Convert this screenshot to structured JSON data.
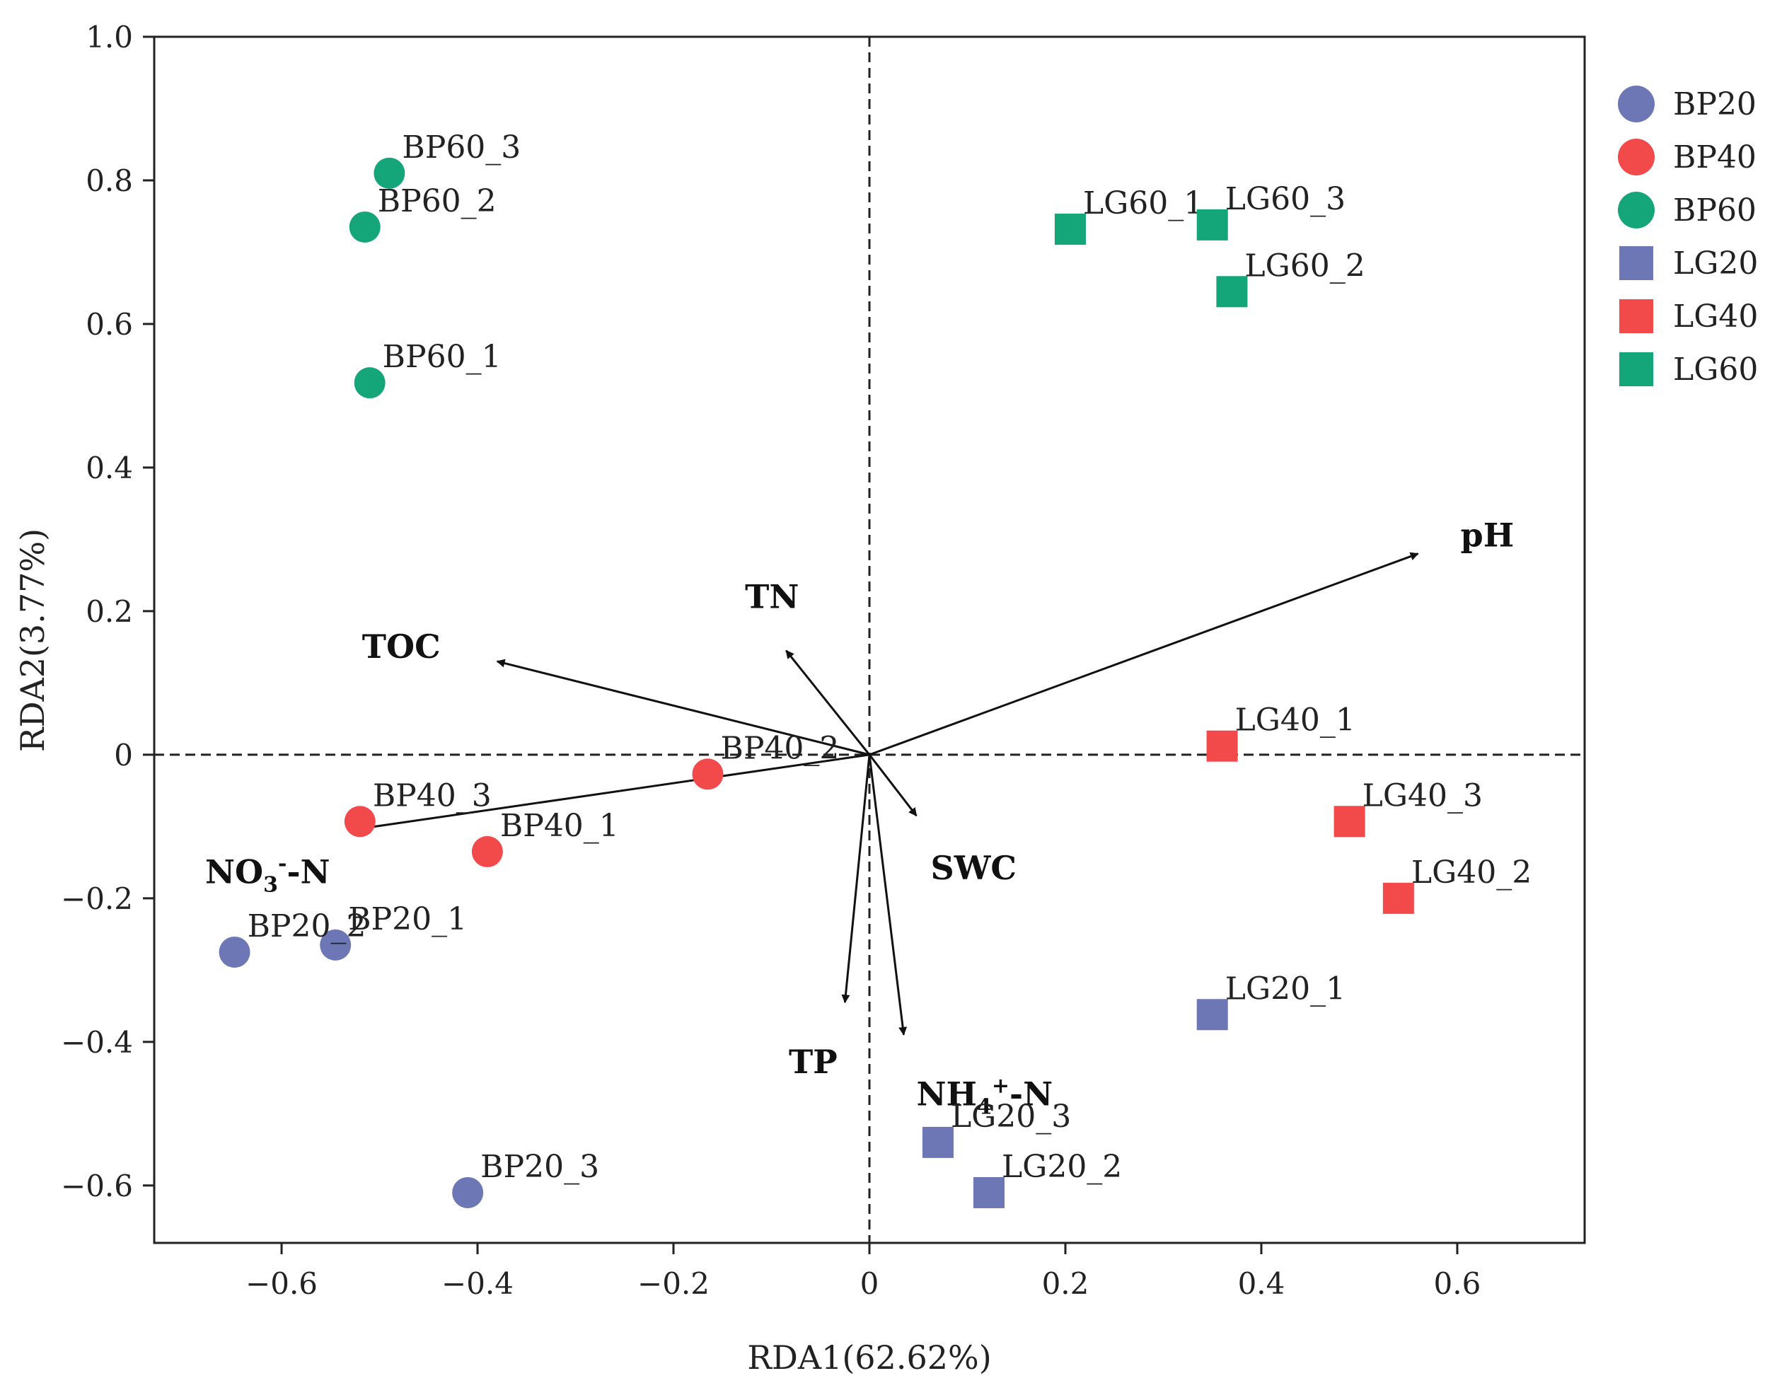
{
  "chart_data": {
    "type": "scatter",
    "title": "",
    "xlabel": "RDA1(62.62%)",
    "ylabel": "RDA2(3.77%)",
    "xlim": [
      -0.73,
      0.73
    ],
    "ylim": [
      -0.68,
      1.0
    ],
    "x_ticks": [
      -0.6,
      -0.4,
      -0.2,
      0,
      0.2,
      0.4,
      0.6
    ],
    "x_tick_labels": [
      "−0.6",
      "−0.4",
      "−0.2",
      "0",
      "0.2",
      "0.4",
      "0.6"
    ],
    "y_ticks": [
      -0.6,
      -0.4,
      -0.2,
      0,
      0.2,
      0.4,
      0.6,
      0.8,
      1.0
    ],
    "y_tick_labels": [
      "−0.6",
      "−0.4",
      "−0.2",
      "0",
      "0.2",
      "0.4",
      "0.6",
      "0.8",
      "1.0"
    ],
    "reference_lines": {
      "x": 0,
      "y": 0,
      "style": "dashed"
    },
    "legend_position": "right",
    "series": [
      {
        "name": "BP20",
        "marker": "circle",
        "color": "#6d77b5",
        "points": [
          {
            "label": "BP20_1",
            "x": -0.545,
            "y": -0.265
          },
          {
            "label": "BP20_2",
            "x": -0.648,
            "y": -0.275
          },
          {
            "label": "BP20_3",
            "x": -0.41,
            "y": -0.61
          }
        ]
      },
      {
        "name": "BP40",
        "marker": "circle",
        "color": "#f2494b",
        "points": [
          {
            "label": "BP40_1",
            "x": -0.39,
            "y": -0.135
          },
          {
            "label": "BP40_2",
            "x": -0.165,
            "y": -0.027
          },
          {
            "label": "BP40_3",
            "x": -0.52,
            "y": -0.093
          }
        ]
      },
      {
        "name": "BP60",
        "marker": "circle",
        "color": "#14a678",
        "points": [
          {
            "label": "BP60_1",
            "x": -0.51,
            "y": 0.518
          },
          {
            "label": "BP60_2",
            "x": -0.515,
            "y": 0.735
          },
          {
            "label": "BP60_3",
            "x": -0.49,
            "y": 0.81
          }
        ]
      },
      {
        "name": "LG20",
        "marker": "square",
        "color": "#6d77b5",
        "points": [
          {
            "label": "LG20_1",
            "x": 0.35,
            "y": -0.362
          },
          {
            "label": "LG20_2",
            "x": 0.122,
            "y": -0.61
          },
          {
            "label": "LG20_3",
            "x": 0.07,
            "y": -0.54
          }
        ]
      },
      {
        "name": "LG40",
        "marker": "square",
        "color": "#f2494b",
        "points": [
          {
            "label": "LG40_1",
            "x": 0.36,
            "y": 0.012
          },
          {
            "label": "LG40_2",
            "x": 0.54,
            "y": -0.2
          },
          {
            "label": "LG40_3",
            "x": 0.49,
            "y": -0.093
          }
        ]
      },
      {
        "name": "LG60",
        "marker": "square",
        "color": "#14a678",
        "points": [
          {
            "label": "LG60_1",
            "x": 0.205,
            "y": 0.732
          },
          {
            "label": "LG60_2",
            "x": 0.37,
            "y": 0.645
          },
          {
            "label": "LG60_3",
            "x": 0.35,
            "y": 0.738
          }
        ]
      }
    ],
    "env_vectors": [
      {
        "name": "pH",
        "main": "pH",
        "sup": "",
        "sub": "",
        "tail": "",
        "x": 0.56,
        "y": 0.28
      },
      {
        "name": "TOC",
        "main": "TOC",
        "sup": "",
        "sub": "",
        "tail": "",
        "x": -0.38,
        "y": 0.13
      },
      {
        "name": "TN",
        "main": "TN",
        "sup": "",
        "sub": "",
        "tail": "",
        "x": -0.085,
        "y": 0.145
      },
      {
        "name": "SWC",
        "main": "SWC",
        "sup": "",
        "sub": "",
        "tail": "",
        "x": 0.048,
        "y": -0.085
      },
      {
        "name": "TP",
        "main": "TP",
        "sup": "",
        "sub": "",
        "tail": "",
        "x": -0.025,
        "y": -0.345
      },
      {
        "name": "NH4+-N",
        "main": "NH",
        "sub": "4",
        "sup": "+",
        "tail": "-N",
        "x": 0.035,
        "y": -0.39
      },
      {
        "name": "NO3--N",
        "main": "NO",
        "sub": "3",
        "sup": "-",
        "tail": "-N",
        "x": -0.53,
        "y": -0.105
      }
    ]
  }
}
